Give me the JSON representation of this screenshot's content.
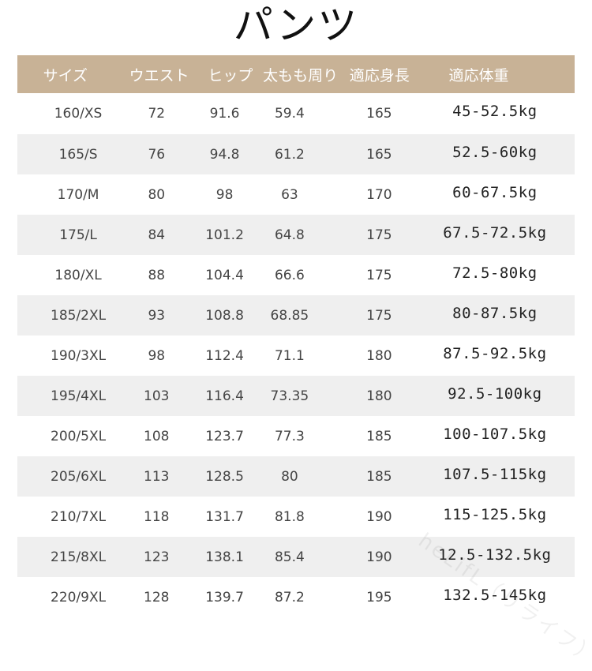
{
  "title": "パンツ",
  "table": {
    "headers": [
      "サイズ",
      "ウエスト",
      "ヒップ",
      "太もも周り",
      "適応身長",
      "適応体重"
    ],
    "rows": [
      [
        "160/XS",
        "72",
        "91.6",
        "59.4",
        "165",
        "45-52.5kg"
      ],
      [
        "165/S",
        "76",
        "94.8",
        "61.2",
        "165",
        "52.5-60kg"
      ],
      [
        "170/M",
        "80",
        "98",
        "63",
        "170",
        "60-67.5kg"
      ],
      [
        "175/L",
        "84",
        "101.2",
        "64.8",
        "175",
        "67.5-72.5kg"
      ],
      [
        "180/XL",
        "88",
        "104.4",
        "66.6",
        "175",
        "72.5-80kg"
      ],
      [
        "185/2XL",
        "93",
        "108.8",
        "68.85",
        "175",
        "80-87.5kg"
      ],
      [
        "190/3XL",
        "98",
        "112.4",
        "71.1",
        "180",
        "87.5-92.5kg"
      ],
      [
        "195/4XL",
        "103",
        "116.4",
        "73.35",
        "180",
        "92.5-100kg"
      ],
      [
        "200/5XL",
        "108",
        "123.7",
        "77.3",
        "185",
        "100-107.5kg"
      ],
      [
        "205/6XL",
        "113",
        "128.5",
        "80",
        "185",
        "107.5-115kg"
      ],
      [
        "210/7XL",
        "118",
        "131.7",
        "81.8",
        "190",
        "115-125.5kg"
      ],
      [
        "215/8XL",
        "123",
        "138.1",
        "85.4",
        "190",
        "12.5-132.5kg"
      ],
      [
        "220/9XL",
        "128",
        "139.7",
        "87.2",
        "195",
        "132.5-145kg"
      ]
    ]
  },
  "watermark": "heLifL（リライフ）",
  "colors": {
    "header_bg": "#c8b296",
    "header_text": "#ffffff",
    "row_alt_bg": "#efefef",
    "row_bg": "#ffffff"
  }
}
